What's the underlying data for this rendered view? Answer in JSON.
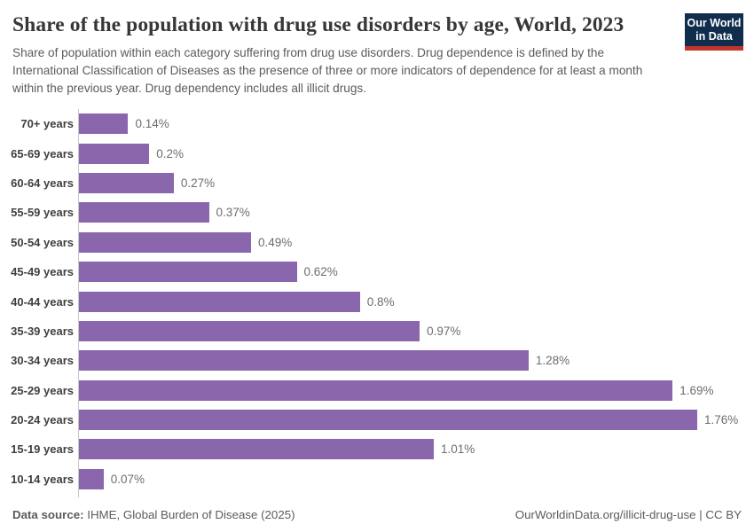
{
  "header": {
    "title": "Share of the population with drug use disorders by age, World, 2023",
    "subtitle": "Share of population within each category suffering from drug use disorders. Drug dependence is defined by the International Classification of Diseases as the presence of three or more indicators of dependence for at least a month within the previous year. Drug dependency includes all illicit drugs.",
    "logo": {
      "line1": "Our World",
      "line2": "in Data"
    }
  },
  "chart_data": {
    "type": "bar",
    "orientation": "horizontal",
    "title": "Share of the population with drug use disorders by age, World, 2023",
    "categories": [
      "70+ years",
      "65-69 years",
      "60-64 years",
      "55-59 years",
      "50-54 years",
      "45-49 years",
      "40-44 years",
      "35-39 years",
      "30-34 years",
      "25-29 years",
      "20-24 years",
      "15-19 years",
      "10-14 years"
    ],
    "values": [
      0.14,
      0.2,
      0.27,
      0.37,
      0.49,
      0.62,
      0.8,
      0.97,
      1.28,
      1.69,
      1.76,
      1.01,
      0.07
    ],
    "value_labels": [
      "0.14%",
      "0.2%",
      "0.27%",
      "0.37%",
      "0.49%",
      "0.62%",
      "0.8%",
      "0.97%",
      "1.28%",
      "1.69%",
      "1.76%",
      "1.01%",
      "0.07%"
    ],
    "xlabel": "",
    "ylabel": "",
    "xlim": [
      0,
      1.76
    ],
    "grid": false,
    "legend": false,
    "bar_color": "#8a66ad",
    "axis_color": "#c9c9c9"
  },
  "footer": {
    "source_label": "Data source:",
    "source_text": " IHME, Global Burden of Disease (2025)",
    "link_text": "OurWorldinData.org/illicit-drug-use | CC BY"
  }
}
